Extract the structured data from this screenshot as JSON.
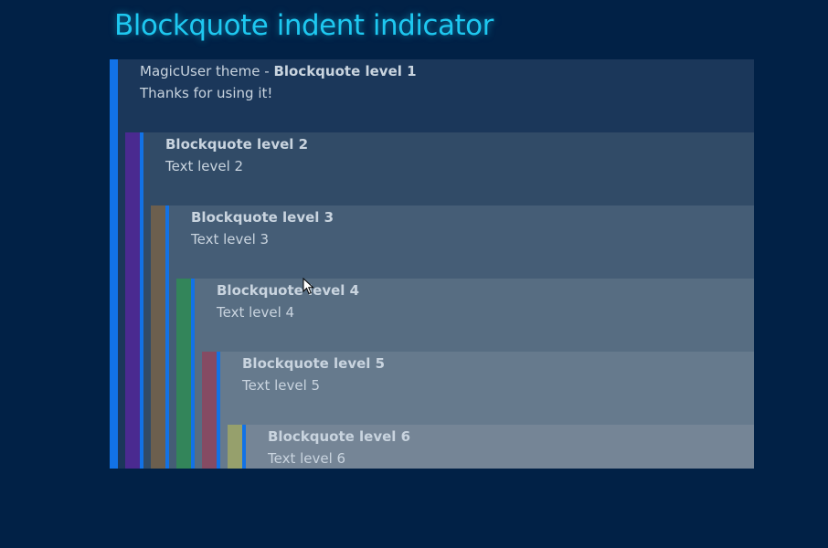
{
  "page": {
    "title": "Blockquote indent indicator"
  },
  "blockquotes": [
    {
      "level": 1,
      "prefix": "MagicUser theme - ",
      "title": "Blockquote level 1",
      "text": "Thanks for using it!",
      "bg": "#1b375a",
      "stripe": "#1272e6"
    },
    {
      "level": 2,
      "title": "Blockquote level 2",
      "text": "Text level 2",
      "bg": "#314b67",
      "stripe": "#4a2a90"
    },
    {
      "level": 3,
      "title": "Blockquote level 3",
      "text": "Text level 3",
      "bg": "#455d76",
      "stripe": "#6c5f4e"
    },
    {
      "level": 4,
      "title": "Blockquote level 4",
      "text": "Text level 4",
      "bg": "#576d82",
      "stripe": "#33855a"
    },
    {
      "level": 5,
      "title": "Blockquote level 5",
      "text": "Text level 5",
      "bg": "#667a8d",
      "stripe": "#854b63"
    },
    {
      "level": 6,
      "title": "Blockquote level 6",
      "text": "Text level 6",
      "bg": "#758596",
      "stripe": "#96a06c"
    }
  ],
  "accent": "#1ec8f0",
  "border_color": "#1272e6"
}
